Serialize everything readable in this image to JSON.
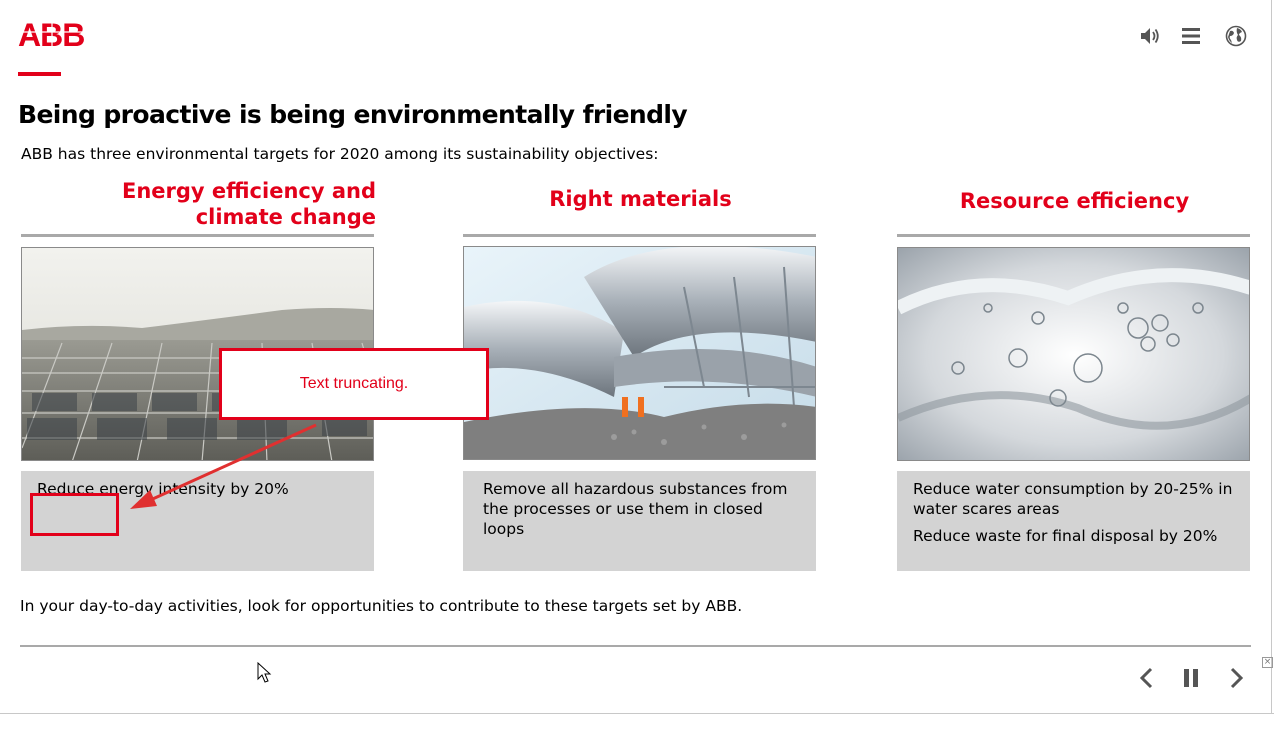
{
  "header": {
    "logo_text": "ABB",
    "icons": [
      "speaker-icon",
      "menu-icon",
      "globe-icon"
    ]
  },
  "title": "Being proactive is being environmentally friendly",
  "intro": "ABB has three environmental targets for 2020 among its sustainability objectives:",
  "columns": [
    {
      "heading_line1": "Energy efficiency and",
      "heading_line2": "climate change",
      "image": "solar-panels-image",
      "text1": "Reduce energy intensity by 20%"
    },
    {
      "heading": "Right materials",
      "image": "industrial-pipes-image",
      "text1": "Remove all hazardous substances from the processes or use them in closed loops"
    },
    {
      "heading": "Resource efficiency",
      "image": "water-splash-image",
      "text1": "Reduce water consumption by 20-25% in water scares areas",
      "text2": "Reduce waste for final disposal by 20%"
    }
  ],
  "footer_text": "In your day-to-day activities, look for opportunities to contribute to these targets set by ABB.",
  "annotation": {
    "callout_text": "Text truncating."
  },
  "colors": {
    "accent": "#e2001a",
    "box_bg": "#d3d3d3",
    "rule": "#a9a9a9"
  },
  "nav": {
    "icons": [
      "chevron-left-icon",
      "pause-icon",
      "chevron-right-icon"
    ]
  }
}
